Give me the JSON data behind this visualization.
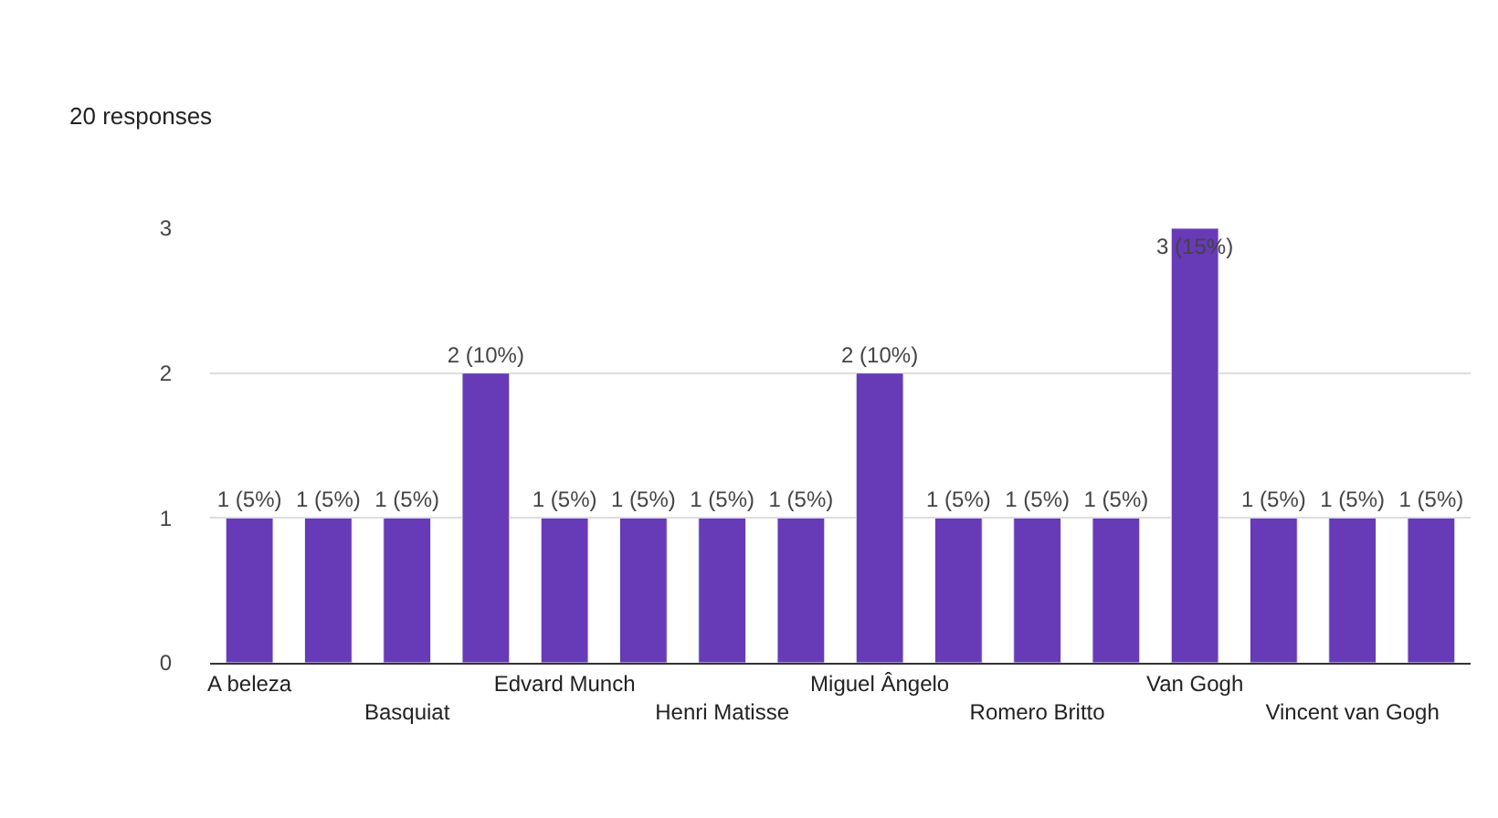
{
  "chart_data": {
    "type": "bar",
    "subtitle": "20 responses",
    "categories": [
      "A beleza",
      null,
      "Basquiat",
      null,
      "Edvard Munch",
      null,
      "Henri Matisse",
      null,
      "Miguel Ângelo",
      null,
      "Romero Britto",
      null,
      "Van Gogh",
      null,
      "Vincent van Gogh",
      null
    ],
    "values": [
      1,
      1,
      1,
      2,
      1,
      1,
      1,
      1,
      2,
      1,
      1,
      1,
      3,
      1,
      1,
      1
    ],
    "value_labels": [
      "1 (5%)",
      "1 (5%)",
      "1 (5%)",
      "2 (10%)",
      "1 (5%)",
      "1 (5%)",
      "1 (5%)",
      "1 (5%)",
      "2 (10%)",
      "1 (5%)",
      "1 (5%)",
      "1 (5%)",
      "3 (15%)",
      "1 (5%)",
      "1 (5%)",
      "1 (5%)"
    ],
    "color": "#673ab7",
    "ylim": [
      0,
      3
    ],
    "yticks": [
      0,
      1,
      2,
      3
    ],
    "grid": "y",
    "legend": false
  }
}
